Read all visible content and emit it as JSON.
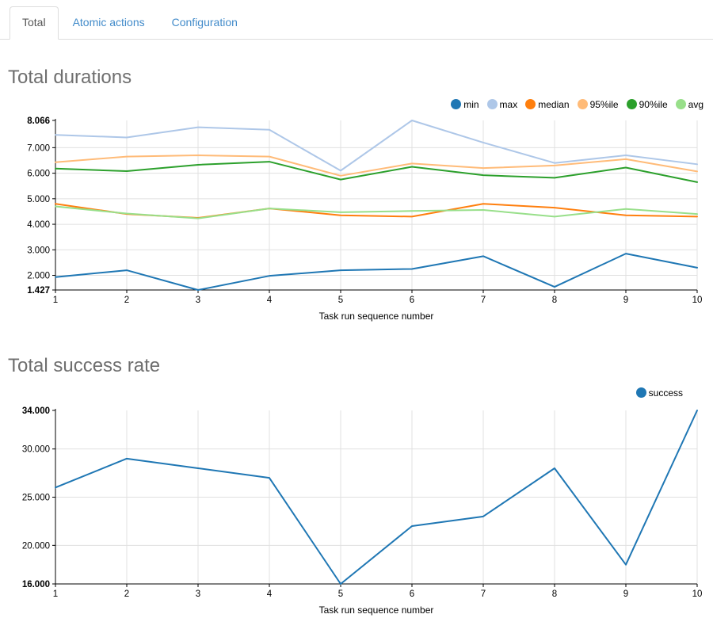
{
  "tabs": [
    {
      "label": "Total",
      "active": true
    },
    {
      "label": "Atomic actions",
      "active": false
    },
    {
      "label": "Configuration",
      "active": false
    }
  ],
  "colors": {
    "link_blue": "#428bca",
    "active_tab_text": "#555555",
    "heading_gray": "#6f6f6f",
    "grid_gray": "#e0e0e0",
    "axis_black": "#000000"
  },
  "chart_data": [
    {
      "type": "line",
      "id": "total-durations",
      "title": "Total durations",
      "xlabel": "Task run sequence number",
      "x": [
        1,
        2,
        3,
        4,
        5,
        6,
        7,
        8,
        9,
        10
      ],
      "ylim": [
        1.427,
        8.066
      ],
      "y_ticks": [
        {
          "value": 8.066,
          "label": "8.066",
          "bold": true
        },
        {
          "value": 7.0,
          "label": "7.000",
          "bold": false
        },
        {
          "value": 6.0,
          "label": "6.000",
          "bold": false
        },
        {
          "value": 5.0,
          "label": "5.000",
          "bold": false
        },
        {
          "value": 4.0,
          "label": "4.000",
          "bold": false
        },
        {
          "value": 3.0,
          "label": "3.000",
          "bold": false
        },
        {
          "value": 2.0,
          "label": "2.000",
          "bold": false
        },
        {
          "value": 1.427,
          "label": "1.427",
          "bold": true
        }
      ],
      "grid_y_values": [
        7,
        6,
        5,
        4,
        3,
        2
      ],
      "grid_on": true,
      "legend_position": "top-right",
      "series": [
        {
          "name": "min",
          "color": "#1f77b4",
          "values": [
            1.93,
            2.2,
            1.427,
            1.98,
            2.2,
            2.25,
            2.75,
            1.55,
            2.85,
            2.3
          ]
        },
        {
          "name": "max",
          "color": "#aec7e8",
          "values": [
            7.5,
            7.4,
            7.8,
            7.7,
            6.1,
            8.066,
            7.2,
            6.4,
            6.7,
            6.35
          ]
        },
        {
          "name": "median",
          "color": "#ff7f0e",
          "values": [
            4.8,
            4.4,
            4.25,
            4.62,
            4.35,
            4.3,
            4.8,
            4.65,
            4.35,
            4.3
          ]
        },
        {
          "name": "95%ile",
          "color": "#ffbb78",
          "values": [
            6.43,
            6.65,
            6.7,
            6.65,
            5.9,
            6.38,
            6.2,
            6.3,
            6.55,
            6.07
          ]
        },
        {
          "name": "90%ile",
          "color": "#2ca02c",
          "values": [
            6.18,
            6.08,
            6.33,
            6.45,
            5.75,
            6.25,
            5.92,
            5.82,
            6.22,
            5.65
          ]
        },
        {
          "name": "avg",
          "color": "#98df8a",
          "values": [
            4.7,
            4.42,
            4.23,
            4.62,
            4.47,
            4.52,
            4.56,
            4.3,
            4.6,
            4.4
          ]
        }
      ]
    },
    {
      "type": "line",
      "id": "total-success-rate",
      "title": "Total success rate",
      "xlabel": "Task run sequence number",
      "x": [
        1,
        2,
        3,
        4,
        5,
        6,
        7,
        8,
        9,
        10
      ],
      "ylim": [
        16,
        34
      ],
      "y_ticks": [
        {
          "value": 34,
          "label": "34.000",
          "bold": true
        },
        {
          "value": 30,
          "label": "30.000",
          "bold": false
        },
        {
          "value": 25,
          "label": "25.000",
          "bold": false
        },
        {
          "value": 20,
          "label": "20.000",
          "bold": false
        },
        {
          "value": 16,
          "label": "16.000",
          "bold": true
        }
      ],
      "grid_y_values": [
        30,
        25,
        20
      ],
      "grid_on": true,
      "legend_position": "top-right",
      "series": [
        {
          "name": "success",
          "color": "#1f77b4",
          "values": [
            26,
            29,
            28,
            27,
            16,
            22,
            23,
            28,
            18,
            34
          ]
        }
      ]
    }
  ]
}
